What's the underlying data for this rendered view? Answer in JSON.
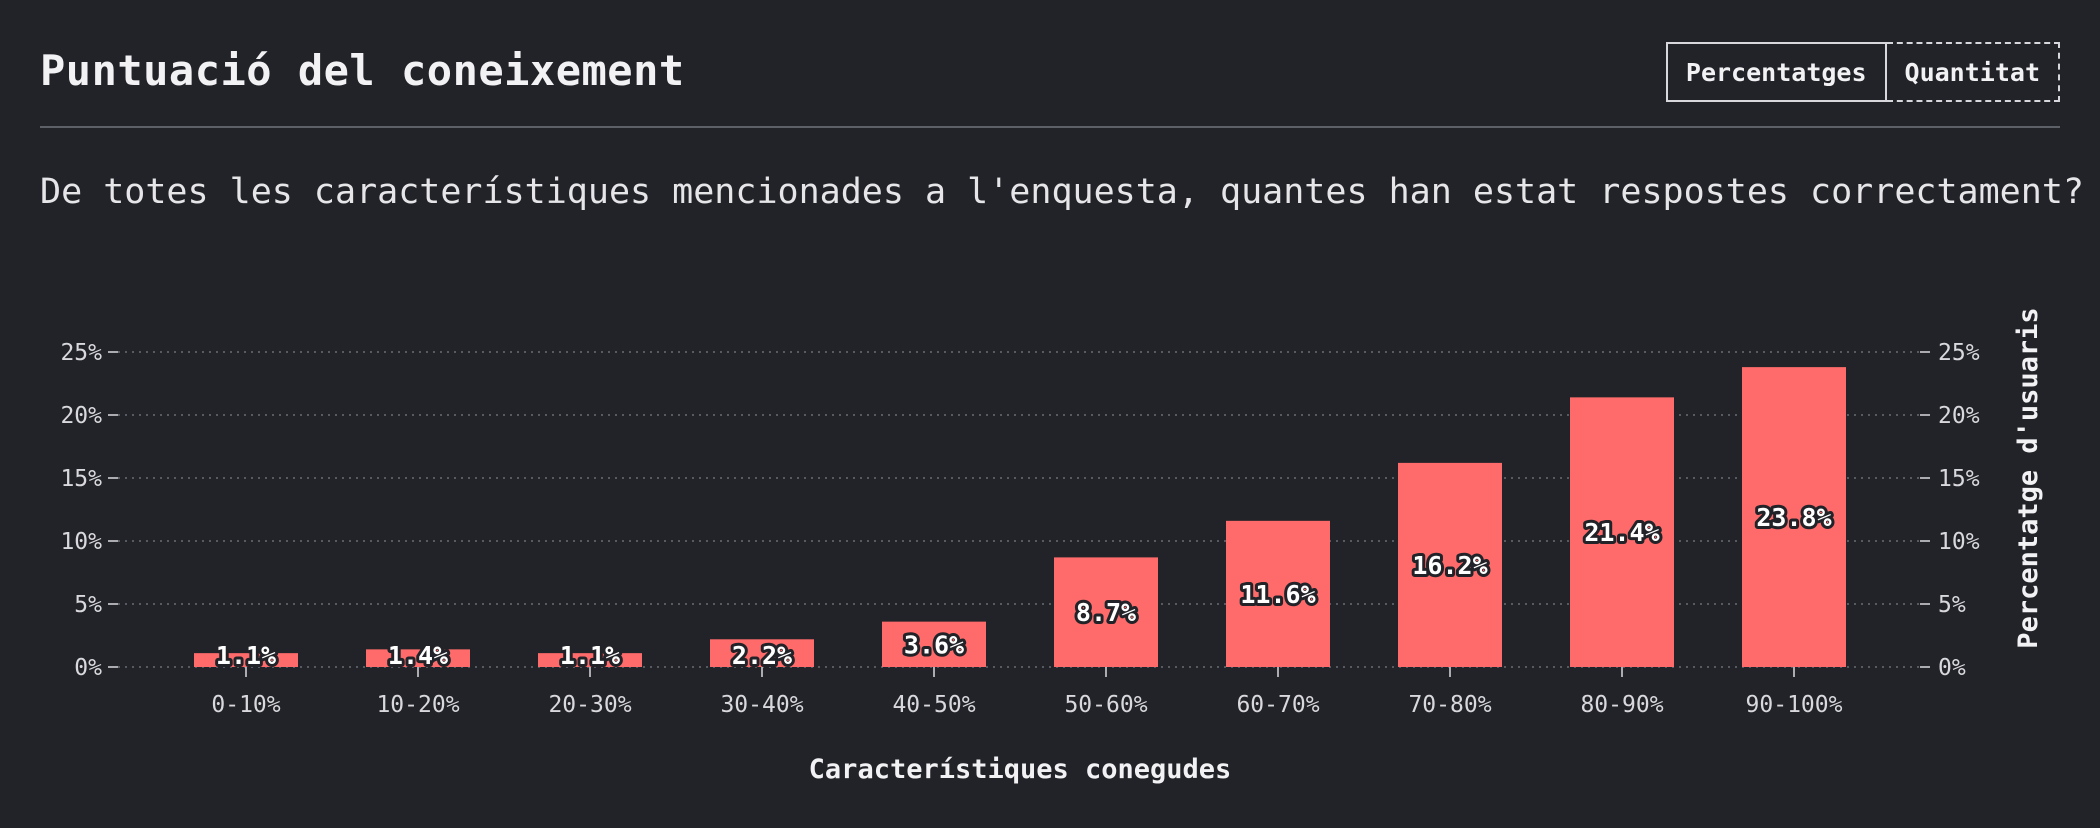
{
  "header": {
    "title": "Puntuació del coneixement",
    "toggle": {
      "percentages_label": "Percentatges",
      "quantity_label": "Quantitat",
      "selected": "Percentatges"
    }
  },
  "subtitle": "De totes les característiques mencionades a l'enquesta, quantes han estat respostes correctament?",
  "colors": {
    "background": "#222328",
    "bar": "#ff6b6b",
    "text": "#e8e8ea",
    "grid": "#6b6d74"
  },
  "chart_data": {
    "type": "bar",
    "categories": [
      "0-10%",
      "10-20%",
      "20-30%",
      "30-40%",
      "40-50%",
      "50-60%",
      "60-70%",
      "70-80%",
      "80-90%",
      "90-100%"
    ],
    "values": [
      1.1,
      1.4,
      1.1,
      2.2,
      3.6,
      8.7,
      11.6,
      16.2,
      21.4,
      23.8
    ],
    "data_labels": [
      "1.1%",
      "1.4%",
      "1.1%",
      "2.2%",
      "3.6%",
      "8.7%",
      "11.6%",
      "16.2%",
      "21.4%",
      "23.8%"
    ],
    "xlabel": "Característiques conegudes",
    "ylabel": "Percentatge d'usuaris",
    "ylim": [
      0,
      25
    ],
    "yticks": [
      0,
      5,
      10,
      15,
      20,
      25
    ],
    "ytick_labels": [
      "0%",
      "5%",
      "10%",
      "15%",
      "20%",
      "25%"
    ],
    "y_axis_sides": "both",
    "grid": "horizontal-dotted",
    "legend": "none"
  }
}
